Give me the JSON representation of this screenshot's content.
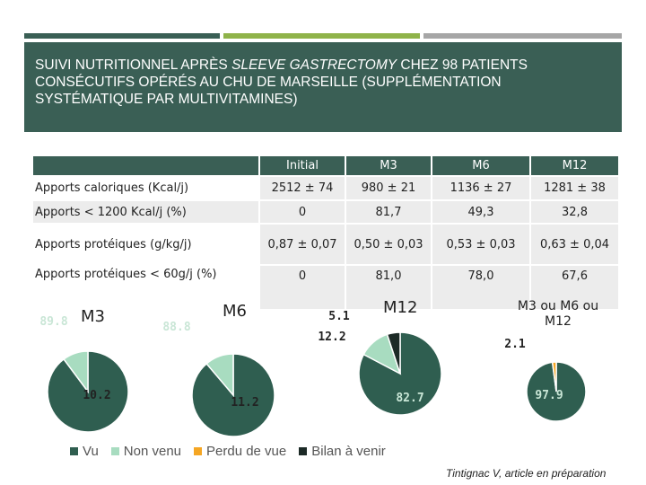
{
  "title": {
    "part1": "SUIVI NUTRITIONNEL APRÈS ",
    "italic": "SLEEVE GASTRECTOMY",
    "part2": " CHEZ 98 PATIENTS CONSÉCUTIFS OPÉRÉS AU CHU DE MARSEILLE (SUPPLÉMENTATION SYSTÉMATIQUE PAR MULTIVITAMINES)"
  },
  "colors": {
    "bar_dark": "#3a5f55",
    "bar_green": "#8fb34a",
    "bar_gray": "#a6a6a6",
    "vu": "#2f5e50",
    "non_venu": "#a8dcc0",
    "perdu_de_vue": "#f5a623",
    "bilan_a_venir": "#1c2a26"
  },
  "table": {
    "columns": [
      "Initial",
      "M3",
      "M6",
      "M12"
    ],
    "rows": [
      {
        "label": "Apports caloriques (Kcal/j)",
        "values": [
          "2512 ± 74",
          "980 ± 21",
          "1136 ± 27",
          "1281 ± 38"
        ]
      },
      {
        "label": "Apports < 1200 Kcal/j (%)",
        "values": [
          "0",
          "81,7",
          "49,3",
          "32,8"
        ]
      },
      {
        "label": "Apports protéiques (g/kg/j)",
        "values": [
          "0,87 ± 0,07",
          "0,50 ± 0,03",
          "0,53 ± 0,03",
          "0,63 ± 0,04"
        ]
      },
      {
        "label": "Apports protéiques < 60g/j (%)",
        "values": [
          "0",
          "81,0",
          "78,0",
          "67,6"
        ]
      }
    ]
  },
  "chart_data": [
    {
      "type": "pie",
      "title": "M3",
      "labels": [
        "Vu",
        "Non venu"
      ],
      "values": [
        89.8,
        10.2
      ]
    },
    {
      "type": "pie",
      "title": "M6",
      "labels": [
        "Vu",
        "Non venu"
      ],
      "values": [
        88.8,
        11.2
      ]
    },
    {
      "type": "pie",
      "title": "M12",
      "labels": [
        "Vu",
        "Non venu",
        "Bilan à venir"
      ],
      "values": [
        82.7,
        12.2,
        5.1
      ]
    },
    {
      "type": "pie",
      "title": "M3 ou M6 ou M12",
      "labels": [
        "Vu",
        "Perdu de vue"
      ],
      "values": [
        97.9,
        2.1
      ]
    }
  ],
  "legend": [
    "Vu",
    "Non venu",
    "Perdu de vue",
    "Bilan à venir"
  ],
  "credit": "Tintignac V, article en préparation"
}
